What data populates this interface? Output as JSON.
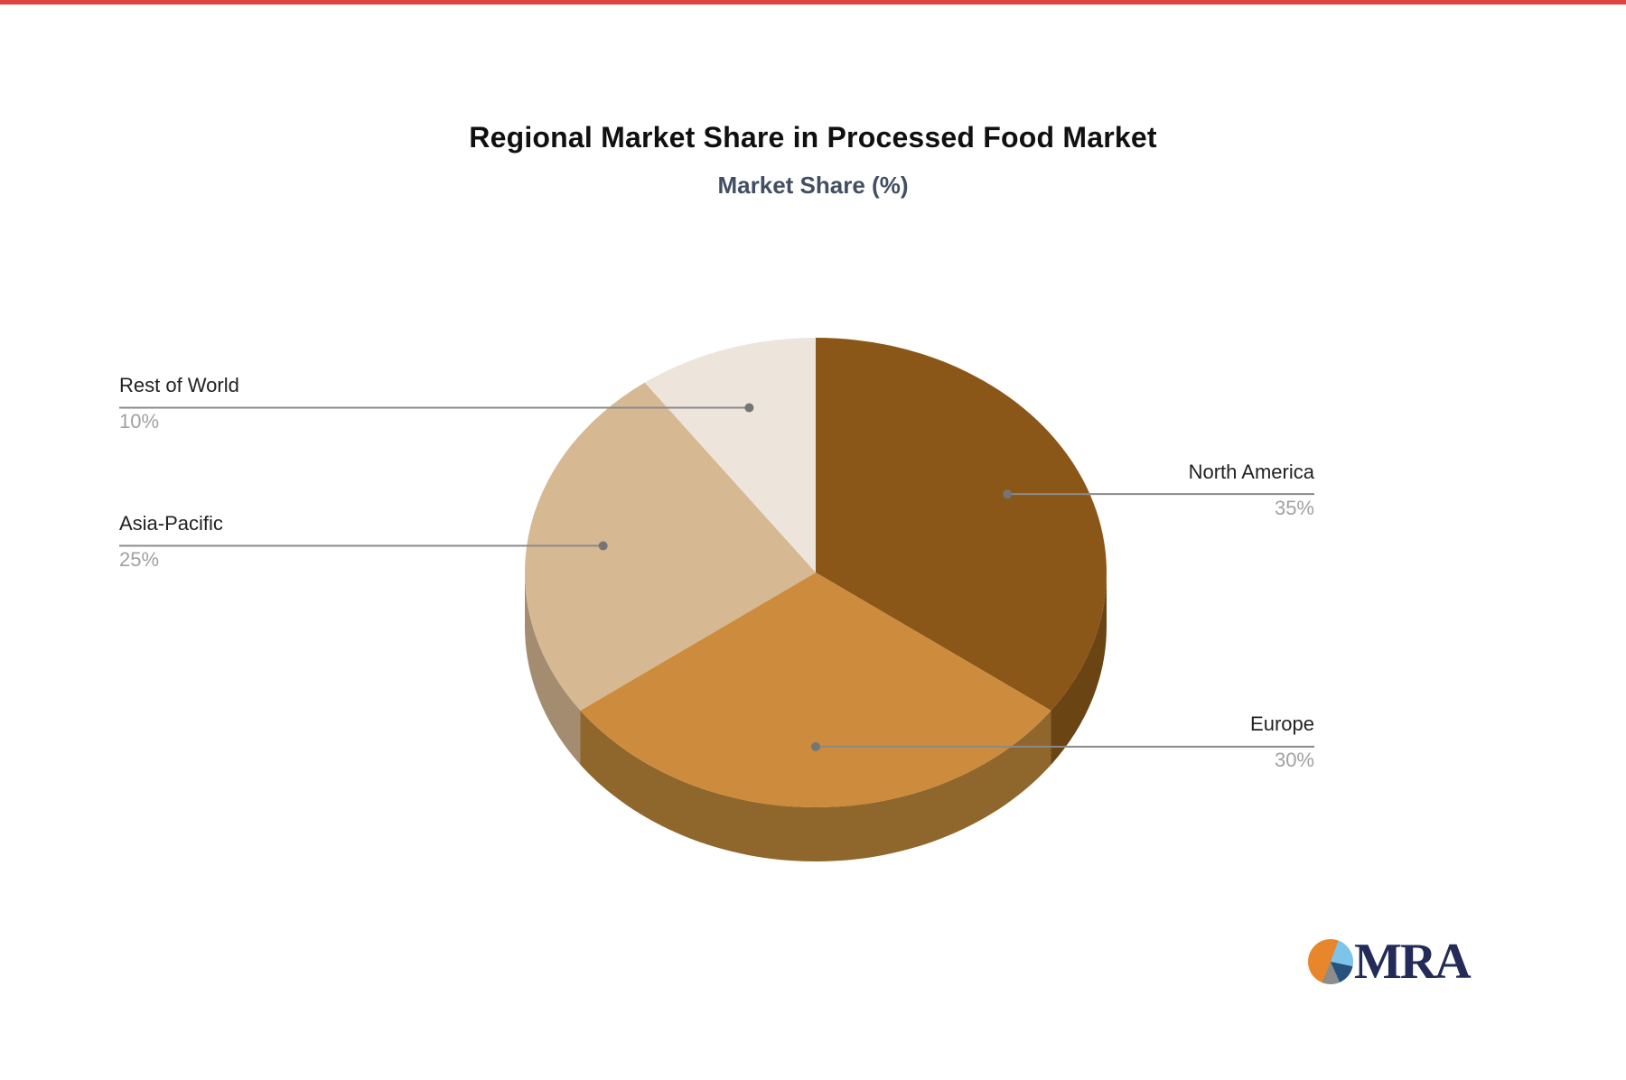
{
  "page": {
    "background": "#FFFFFF",
    "top_strip_color": "#DE4540"
  },
  "chart_data": {
    "type": "pie",
    "title": "Regional Market Share in Processed Food Market",
    "subtitle": "Market Share (%)",
    "unit": "%",
    "effect": "3d",
    "start_angle_deg": 0,
    "direction": "clockwise",
    "legend_position": "none",
    "labels_style": "external-leader-lines",
    "slices": [
      {
        "label": "North America",
        "value": 35,
        "pct_label": "35%",
        "color": "#8B5719",
        "side_color": "#6A4413"
      },
      {
        "label": "Europe",
        "value": 30,
        "pct_label": "30%",
        "color": "#CD8C3D",
        "side_color": "#8F672C"
      },
      {
        "label": "Asia-Pacific",
        "value": 25,
        "pct_label": "25%",
        "color": "#D6B893",
        "side_color": "#A38C70"
      },
      {
        "label": "Rest of World",
        "value": 10,
        "pct_label": "10%",
        "color": "#EDE4DB",
        "side_color": "#C9BFB2"
      }
    ],
    "leader_line_color": "#8A8A8A",
    "leader_dot_color": "#757575",
    "label_color": "#222222",
    "value_color": "#A1A1A1"
  },
  "logo": {
    "text": "MRA",
    "text_color": "#232C58",
    "icon_colors": {
      "orange": "#E8862B",
      "light_blue": "#7EC3E8",
      "dark_blue": "#27517E",
      "gray": "#8D8D8D"
    }
  }
}
